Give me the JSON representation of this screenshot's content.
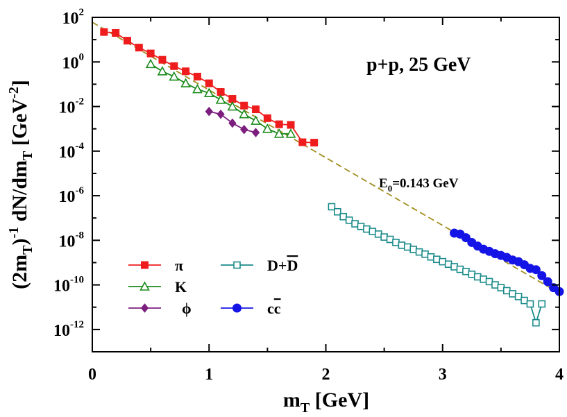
{
  "chart_data": {
    "type": "scatter",
    "title": "",
    "xlabel": "mT [GeV]",
    "ylabel": "(2mT)^-1 dN/dmT [GeV^-2]",
    "xlim": [
      0,
      4
    ],
    "ylim_log10": [
      -13,
      2
    ],
    "yscale": "log",
    "x_ticks": [
      "0",
      "1",
      "2",
      "3",
      "4"
    ],
    "y_tick_exponents": [
      "2",
      "0",
      "-2",
      "-4",
      "-6",
      "-8",
      "-10",
      "-12"
    ],
    "y_tick_base": "10",
    "annotation": "p+p,  25 GeV",
    "fit": {
      "label_main": "E",
      "label_sub": "0",
      "label_value": "=0.143 GeV",
      "E0": 0.143,
      "x_range": [
        0,
        4
      ],
      "y_at_0": 60,
      "color": "#a08c1e"
    },
    "series": [
      {
        "name": "π",
        "marker": "filled-square",
        "color": "#ee1c1c",
        "x": [
          0.1,
          0.2,
          0.3,
          0.4,
          0.5,
          0.6,
          0.7,
          0.8,
          0.9,
          1.0,
          1.1,
          1.2,
          1.3,
          1.4,
          1.5,
          1.6,
          1.7,
          1.8,
          1.9
        ],
        "y": [
          22,
          20,
          9,
          4.4,
          2.4,
          1.25,
          0.65,
          0.38,
          0.22,
          0.11,
          0.045,
          0.022,
          0.011,
          0.0075,
          0.003,
          0.0016,
          0.0015,
          0.00025,
          0.00024
        ]
      },
      {
        "name": "K",
        "marker": "open-triangle",
        "color": "#1a8a1a",
        "x": [
          0.5,
          0.6,
          0.7,
          0.8,
          0.9,
          1.0,
          1.1,
          1.2,
          1.3,
          1.4,
          1.5,
          1.6,
          1.7
        ],
        "y": [
          0.8,
          0.38,
          0.22,
          0.11,
          0.06,
          0.04,
          0.02,
          0.01,
          0.0045,
          0.0023,
          0.001,
          0.0006,
          0.0006
        ]
      },
      {
        "name": "ϕ",
        "marker": "filled-diamond",
        "color": "#7b1e7e",
        "x": [
          1.0,
          1.1,
          1.2,
          1.3,
          1.4
        ],
        "y": [
          0.006,
          0.0045,
          0.0018,
          0.00093,
          0.00068
        ]
      },
      {
        "name": "D+D",
        "marker": "open-square",
        "color": "#1a8a8a",
        "x": [
          2.05,
          2.1,
          2.15,
          2.2,
          2.25,
          2.3,
          2.35,
          2.4,
          2.45,
          2.5,
          2.55,
          2.6,
          2.65,
          2.7,
          2.75,
          2.8,
          2.85,
          2.9,
          2.95,
          3.0,
          3.05,
          3.1,
          3.15,
          3.2,
          3.25,
          3.3,
          3.35,
          3.4,
          3.45,
          3.5,
          3.55,
          3.6,
          3.65,
          3.7,
          3.75,
          3.8,
          3.85
        ],
        "y": [
          3.2e-07,
          1.9e-07,
          1.15e-07,
          8e-08,
          5.5e-08,
          4.2e-08,
          3.2e-08,
          2.5e-08,
          1.9e-08,
          1.4e-08,
          1.1e-08,
          8e-09,
          6e-09,
          5e-09,
          3.9e-09,
          3e-09,
          2.4e-09,
          1.8e-09,
          1.4e-09,
          1.1e-09,
          8.5e-10,
          6.5e-10,
          5e-10,
          4e-10,
          3e-10,
          2.3e-10,
          1.8e-10,
          1.4e-10,
          1e-10,
          7.5e-11,
          5.5e-11,
          4e-11,
          3e-11,
          2e-11,
          1.4e-11,
          2e-12,
          1.4e-11
        ]
      },
      {
        "name": "cc",
        "marker": "filled-circle",
        "color": "#1414e6",
        "x": [
          3.1,
          3.15,
          3.2,
          3.25,
          3.3,
          3.35,
          3.4,
          3.45,
          3.5,
          3.55,
          3.6,
          3.65,
          3.7,
          3.75,
          3.8,
          3.85,
          3.9,
          3.95,
          4.0
        ],
        "y": [
          2.1e-08,
          1.9e-08,
          1.3e-08,
          8e-09,
          5.5e-09,
          4e-09,
          3.2e-09,
          2.5e-09,
          2.1e-09,
          1.7e-09,
          1.3e-09,
          1.1e-09,
          8e-10,
          5.5e-10,
          4.8e-10,
          2.6e-10,
          1.4e-10,
          7.5e-11,
          5e-11
        ]
      }
    ],
    "legend": {
      "placement": "bottom-left",
      "entries": [
        {
          "series": "π",
          "text": "π"
        },
        {
          "series": "K",
          "text": "K"
        },
        {
          "series": "ϕ",
          "text": "ϕ"
        },
        {
          "series": "D+D",
          "text_main": "D+",
          "text_bar": "D"
        },
        {
          "series": "cc",
          "text_main": "c",
          "text_bar": "c"
        }
      ]
    }
  }
}
